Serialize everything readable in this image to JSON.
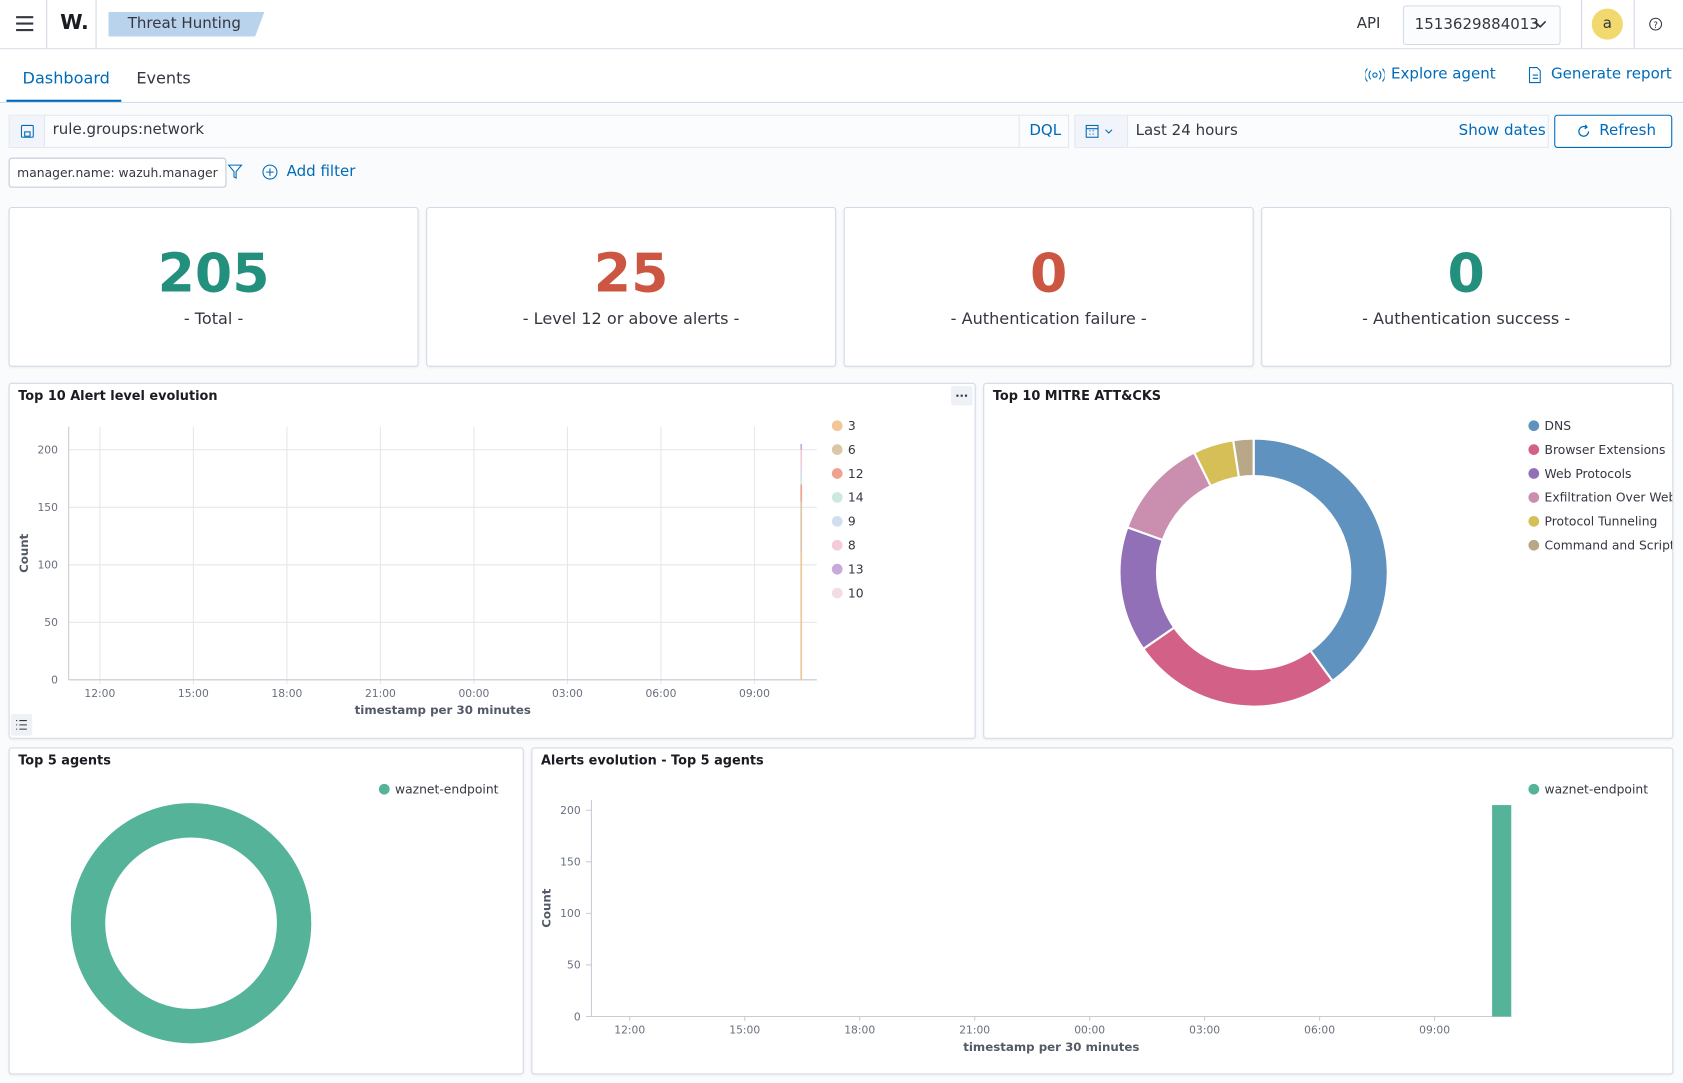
{
  "header": {
    "logo": "W.",
    "breadcrumb": "Threat Hunting",
    "api_label": "API",
    "api_id": "1513629884013",
    "avatar": "a"
  },
  "tabs": [
    "Dashboard",
    "Events"
  ],
  "actions": [
    "Explore agent",
    "Generate report"
  ],
  "search": {
    "query": "rule.groups:network",
    "language": "DQL",
    "time_range": "Last 24 hours",
    "show_dates": "Show dates",
    "refresh": "Refresh"
  },
  "filters": {
    "pill": "manager.name: wazuh.manager",
    "add": "Add filter"
  },
  "metrics": [
    {
      "value": "205",
      "label": "- Total -",
      "color": "#23907d"
    },
    {
      "value": "25",
      "label": "- Level 12 or above alerts -",
      "color": "#cc5642"
    },
    {
      "value": "0",
      "label": "- Authentication failure -",
      "color": "#cc5642"
    },
    {
      "value": "0",
      "label": "- Authentication success -",
      "color": "#23907d"
    }
  ],
  "chart_data": [
    {
      "type": "area",
      "title": "Top 10 Alert level evolution",
      "x_label": "timestamp per 30 minutes",
      "y_label": "Count",
      "x": [
        34.5
      ],
      "xlim": [
        11,
        35
      ],
      "xticks": [
        {
          "value": 12,
          "label": "12:00"
        },
        {
          "value": 15,
          "label": "15:00"
        },
        {
          "value": 18,
          "label": "18:00"
        },
        {
          "value": 21,
          "label": "21:00"
        },
        {
          "value": 24,
          "label": "00:00"
        },
        {
          "value": 27,
          "label": "03:00"
        },
        {
          "value": 30,
          "label": "06:00"
        },
        {
          "value": 33,
          "label": "09:00"
        }
      ],
      "ylim": [
        0,
        220
      ],
      "yticks": [
        0,
        50,
        100,
        150,
        200
      ],
      "grid": true,
      "stacked": true,
      "series": [
        {
          "name": "3",
          "color": "#f1c79a",
          "values": [
            110
          ]
        },
        {
          "name": "6",
          "color": "#dcc6a8",
          "values": [
            45
          ]
        },
        {
          "name": "12",
          "color": "#eea28f",
          "values": [
            15
          ]
        },
        {
          "name": "14",
          "color": "#cde8de",
          "values": [
            5
          ]
        },
        {
          "name": "9",
          "color": "#d2def0",
          "values": [
            10
          ]
        },
        {
          "name": "8",
          "color": "#f4cbd8",
          "values": [
            15
          ]
        },
        {
          "name": "13",
          "color": "#c7a9da",
          "values": [
            5
          ]
        },
        {
          "name": "10",
          "color": "#f3dde4",
          "values": [
            0
          ]
        }
      ]
    },
    {
      "type": "pie",
      "title": "Top 10 MITRE ATT&CKS",
      "donut": true,
      "categories": [
        "DNS",
        "Browser Extensions",
        "Web Protocols",
        "Exfiltration Over Web",
        "Protocol Tunneling",
        "Command and Script"
      ],
      "values": [
        82,
        52,
        31,
        25,
        10,
        5
      ],
      "colors": [
        "#6092c0",
        "#d36086",
        "#9170b8",
        "#ca8eae",
        "#d6bf57",
        "#b9a888"
      ]
    },
    {
      "type": "pie",
      "title": "Top 5 agents",
      "donut": true,
      "categories": [
        "waznet-endpoint"
      ],
      "values": [
        205
      ],
      "colors": [
        "#54b399"
      ]
    },
    {
      "type": "bar",
      "title": "Alerts evolution - Top 5 agents",
      "x_label": "timestamp per 30 minutes",
      "y_label": "Count",
      "x": [
        34.5
      ],
      "bar_width": 0.5,
      "xlim": [
        11,
        35
      ],
      "xticks": [
        {
          "value": 12,
          "label": "12:00"
        },
        {
          "value": 15,
          "label": "15:00"
        },
        {
          "value": 18,
          "label": "18:00"
        },
        {
          "value": 21,
          "label": "21:00"
        },
        {
          "value": 24,
          "label": "00:00"
        },
        {
          "value": 27,
          "label": "03:00"
        },
        {
          "value": 30,
          "label": "06:00"
        },
        {
          "value": 33,
          "label": "09:00"
        }
      ],
      "ylim": [
        0,
        210
      ],
      "yticks": [
        0,
        50,
        100,
        150,
        200
      ],
      "grid": false,
      "series": [
        {
          "name": "waznet-endpoint",
          "color": "#54b399",
          "values": [
            205
          ]
        }
      ]
    }
  ]
}
